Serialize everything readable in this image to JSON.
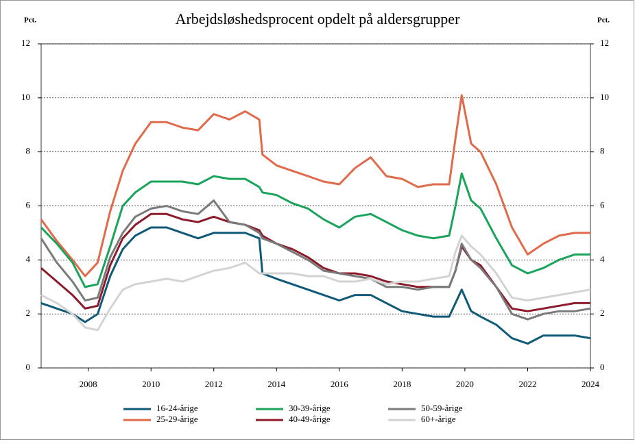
{
  "chart_data": {
    "type": "line",
    "title": "Arbejdsløshedsprocent opdelt på aldersgrupper",
    "y_label": "Pct.",
    "y2_label": "Pct.",
    "x": [
      2007.0,
      2007.5,
      2008.0,
      2008.4,
      2008.8,
      2009.2,
      2009.6,
      2010.0,
      2010.5,
      2011.0,
      2011.5,
      2012.0,
      2012.5,
      2013.0,
      2013.5,
      2013.95,
      2014.05,
      2014.5,
      2015.0,
      2015.5,
      2016.0,
      2016.5,
      2017.0,
      2017.5,
      2018.0,
      2018.5,
      2019.0,
      2019.5,
      2020.0,
      2020.2,
      2020.4,
      2020.7,
      2021.0,
      2021.5,
      2022.0,
      2022.5,
      2023.0,
      2023.5,
      2024.0,
      2024.5
    ],
    "series": [
      {
        "name": "16-24-årige",
        "color": "#0e5a78",
        "values": [
          2.4,
          2.2,
          2.0,
          1.7,
          2.0,
          3.4,
          4.4,
          4.9,
          5.2,
          5.2,
          5.0,
          4.8,
          5.0,
          5.0,
          5.0,
          4.8,
          3.5,
          3.3,
          3.1,
          2.9,
          2.7,
          2.5,
          2.7,
          2.7,
          2.4,
          2.1,
          2.0,
          1.9,
          1.9,
          2.4,
          2.9,
          2.1,
          1.9,
          1.6,
          1.1,
          0.9,
          1.2,
          1.2,
          1.2,
          1.1
        ]
      },
      {
        "name": "25-29-årige",
        "color": "#e06a4a",
        "values": [
          5.5,
          4.7,
          4.0,
          3.4,
          3.9,
          5.8,
          7.3,
          8.3,
          9.1,
          9.1,
          8.9,
          8.8,
          9.4,
          9.2,
          9.5,
          9.2,
          7.9,
          7.5,
          7.3,
          7.1,
          6.9,
          6.8,
          7.4,
          7.8,
          7.1,
          7.0,
          6.7,
          6.8,
          6.8,
          8.5,
          10.1,
          8.3,
          8.0,
          6.8,
          5.2,
          4.2,
          4.6,
          4.9,
          5.0,
          5.0
        ]
      },
      {
        "name": "30-39-årige",
        "color": "#1aa35a",
        "values": [
          5.2,
          4.6,
          3.9,
          3.0,
          3.1,
          4.5,
          6.0,
          6.5,
          6.9,
          6.9,
          6.9,
          6.8,
          7.1,
          7.0,
          7.0,
          6.7,
          6.5,
          6.4,
          6.1,
          5.9,
          5.5,
          5.2,
          5.6,
          5.7,
          5.4,
          5.1,
          4.9,
          4.8,
          4.9,
          6.0,
          7.2,
          6.2,
          5.9,
          4.8,
          3.8,
          3.5,
          3.7,
          4.0,
          4.2,
          4.2
        ]
      },
      {
        "name": "40-49-årige",
        "color": "#8b1a2a",
        "values": [
          3.7,
          3.2,
          2.7,
          2.2,
          2.3,
          3.8,
          4.8,
          5.3,
          5.7,
          5.7,
          5.5,
          5.4,
          5.6,
          5.4,
          5.3,
          5.1,
          4.9,
          4.6,
          4.4,
          4.1,
          3.7,
          3.5,
          3.5,
          3.4,
          3.2,
          3.1,
          3.0,
          3.0,
          3.0,
          3.6,
          4.5,
          4.0,
          3.8,
          3.0,
          2.2,
          2.1,
          2.2,
          2.3,
          2.4,
          2.4
        ]
      },
      {
        "name": "50-59-årige",
        "color": "#7a7a7a",
        "values": [
          4.8,
          3.9,
          3.2,
          2.5,
          2.6,
          4.1,
          5.0,
          5.6,
          5.9,
          6.0,
          5.8,
          5.7,
          6.2,
          5.4,
          5.3,
          5.0,
          4.8,
          4.6,
          4.3,
          4.0,
          3.6,
          3.5,
          3.4,
          3.3,
          3.0,
          3.0,
          2.9,
          3.0,
          3.0,
          3.6,
          4.6,
          4.0,
          3.7,
          3.0,
          2.0,
          1.8,
          2.0,
          2.1,
          2.1,
          2.2
        ]
      },
      {
        "name": "60+-årige",
        "color": "#d3d3d3",
        "values": [
          2.7,
          2.4,
          2.0,
          1.5,
          1.4,
          2.2,
          2.9,
          3.1,
          3.2,
          3.3,
          3.2,
          3.4,
          3.6,
          3.7,
          3.9,
          3.5,
          3.5,
          3.5,
          3.5,
          3.4,
          3.4,
          3.2,
          3.2,
          3.3,
          3.1,
          3.2,
          3.2,
          3.3,
          3.4,
          4.3,
          4.9,
          4.5,
          4.2,
          3.5,
          2.6,
          2.5,
          2.6,
          2.7,
          2.8,
          2.9
        ]
      }
    ],
    "xlim": [
      2007.0,
      2024.5
    ],
    "xticks": [
      {
        "value": 2008.5,
        "label": "2008"
      },
      {
        "value": 2010.5,
        "label": "2010"
      },
      {
        "value": 2012.5,
        "label": "2012"
      },
      {
        "value": 2014.5,
        "label": "2014"
      },
      {
        "value": 2016.5,
        "label": "2016"
      },
      {
        "value": 2018.5,
        "label": "2018"
      },
      {
        "value": 2020.5,
        "label": "2020"
      },
      {
        "value": 2022.5,
        "label": "2022"
      },
      {
        "value": 2024.5,
        "label": "2024"
      }
    ],
    "ylim": [
      0,
      12
    ],
    "yticks": [
      0,
      2,
      4,
      6,
      8,
      10,
      12
    ],
    "y2lim": [
      0,
      12
    ],
    "y2ticks": [
      0,
      2,
      4,
      6,
      8,
      10,
      12
    ],
    "grid": true
  }
}
